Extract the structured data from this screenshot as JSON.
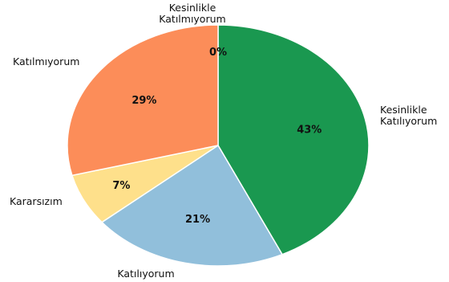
{
  "chart_data": {
    "type": "pie",
    "slices": [
      {
        "label": "Kesinlikle Katılıyorum",
        "value": 43,
        "display": "43%",
        "color": "#1a9850"
      },
      {
        "label": "Katılıyorum",
        "value": 21,
        "display": "21%",
        "color": "#91bfdb"
      },
      {
        "label": "Kararsızım",
        "value": 7,
        "display": "7%",
        "color": "#fee08b"
      },
      {
        "label": "Katılmıyorum",
        "value": 29,
        "display": "29%",
        "color": "#fc8d59"
      },
      {
        "label": "Kesinlikle Katılmıyorum",
        "value": 0,
        "display": "0%",
        "color": "#d73027"
      }
    ],
    "start": "12 o'clock",
    "direction": "clockwise"
  }
}
